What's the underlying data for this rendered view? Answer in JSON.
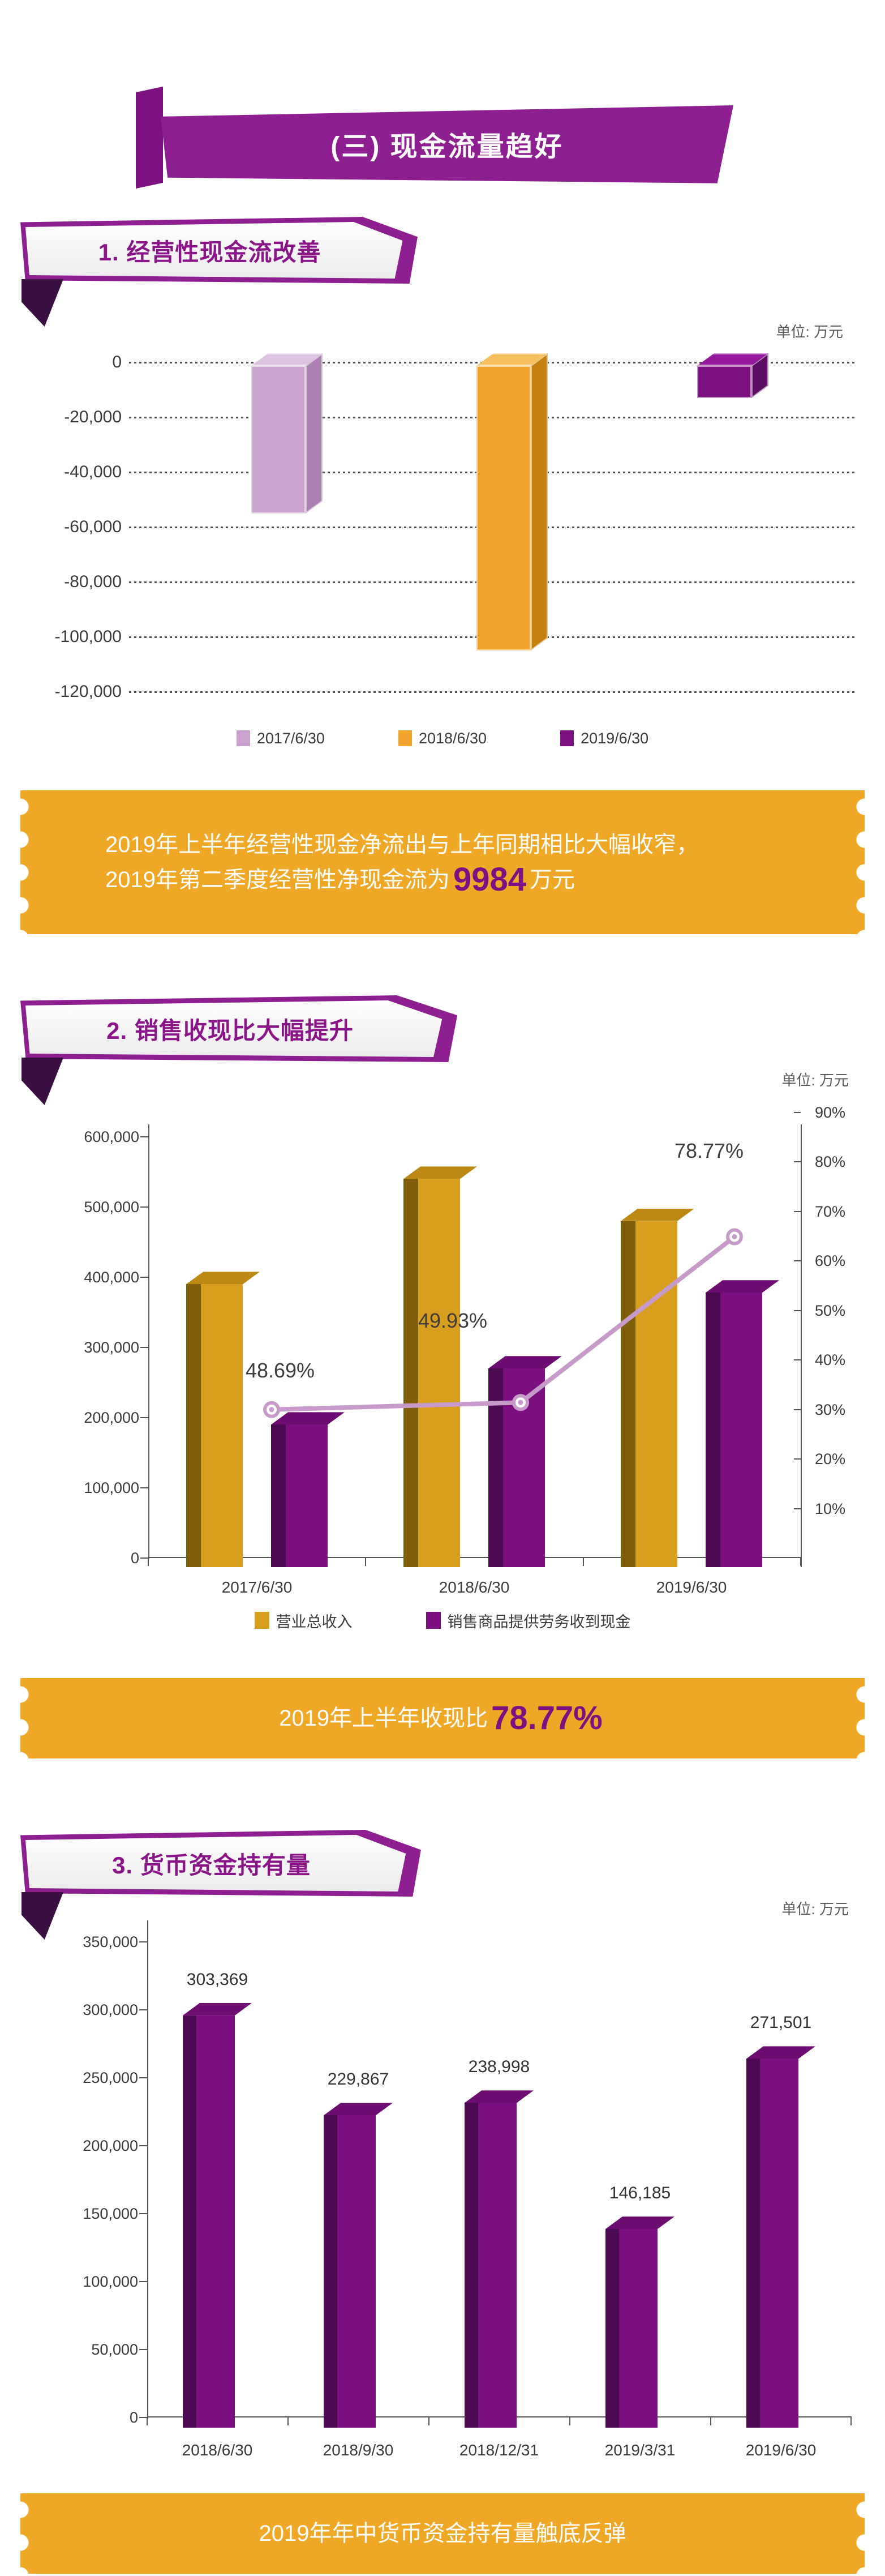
{
  "page": {
    "background": "#ffffff",
    "accent_purple": "#8E1F90",
    "accent_yellow": "#EFA826"
  },
  "header": {
    "title": "(三) 现金流量趋好"
  },
  "section1": {
    "tag": "1. 经营性现金流改善",
    "unit_label": "单位: 万元",
    "callout": {
      "line1": "2019年上半年经营性现金净流出与上年同期相比大幅收窄，",
      "line2_prefix": "2019年第二季度经营性净现金流为",
      "line2_highlight": "9984",
      "line2_suffix": "万元"
    }
  },
  "section2": {
    "tag": "2. 销售收现比大幅提升",
    "unit_label": "单位: 万元",
    "callout": {
      "prefix": "2019年上半年收现比",
      "highlight": "78.77%"
    }
  },
  "section3": {
    "tag": "3. 货币资金持有量",
    "unit_label": "单位: 万元",
    "callout": {
      "text": "2019年年中货币资金持有量触底反弹"
    }
  },
  "chart_data": [
    {
      "id": "operating-net-cash-flow",
      "type": "bar",
      "unit": "万元",
      "categories": [
        "2017/6/30",
        "2018/6/30",
        "2019/6/30"
      ],
      "values": [
        -55000,
        -105000,
        -13000
      ],
      "values_estimated": true,
      "ylim": [
        -120000,
        0
      ],
      "yticks": [
        "0",
        "-20,000",
        "-40,000",
        "-60,000",
        "-80,000",
        "-100,000",
        "-120,000"
      ],
      "grid": "dotted-horizontal",
      "legend_position": "bottom",
      "legend": [
        {
          "label": "2017/6/30",
          "color": "#C9A3CD"
        },
        {
          "label": "2018/6/30",
          "color": "#F0A42C"
        },
        {
          "label": "2019/6/30",
          "color": "#7D1081"
        }
      ]
    },
    {
      "id": "sales-cash-collection-ratio",
      "type": "bar+line",
      "unit": "万元",
      "categories": [
        "2017/6/30",
        "2018/6/30",
        "2019/6/30"
      ],
      "series": [
        {
          "name": "营业总收入",
          "type": "bar",
          "axis": "left",
          "color": "#D89E1D",
          "values": [
            390000,
            540000,
            480000
          ],
          "values_estimated": true
        },
        {
          "name": "销售商品提供劳务收到现金",
          "type": "bar",
          "axis": "left",
          "color": "#7C0F80",
          "values": [
            190000,
            270000,
            378000
          ],
          "values_estimated": true
        },
        {
          "name": "收现比",
          "type": "line",
          "axis": "right",
          "color": "#C79BC9",
          "values": [
            48.69,
            49.93,
            78.77
          ],
          "labels": [
            "48.69%",
            "49.93%",
            "78.77%"
          ]
        }
      ],
      "left_axis": {
        "min": 0,
        "max": 600000,
        "ticks": [
          "0",
          "100,000",
          "200,000",
          "300,000",
          "400,000",
          "500,000",
          "600,000"
        ]
      },
      "right_axis": {
        "ticks": [
          "10%",
          "20%",
          "30%",
          "40%",
          "50%",
          "60%",
          "70%",
          "80%",
          "90%"
        ]
      },
      "legend_position": "bottom"
    },
    {
      "id": "cash-holdings",
      "type": "bar",
      "unit": "万元",
      "categories": [
        "2018/6/30",
        "2018/9/30",
        "2018/12/31",
        "2019/3/31",
        "2019/6/30"
      ],
      "values": [
        303369,
        229867,
        238998,
        146185,
        271501
      ],
      "data_labels": [
        "303,369",
        "229,867",
        "238,998",
        "146,185",
        "271,501"
      ],
      "color": "#7C0F80",
      "ylim": [
        0,
        350000
      ],
      "yticks": [
        "0",
        "50,000",
        "100,000",
        "150,000",
        "200,000",
        "250,000",
        "300,000",
        "350,000"
      ]
    }
  ]
}
